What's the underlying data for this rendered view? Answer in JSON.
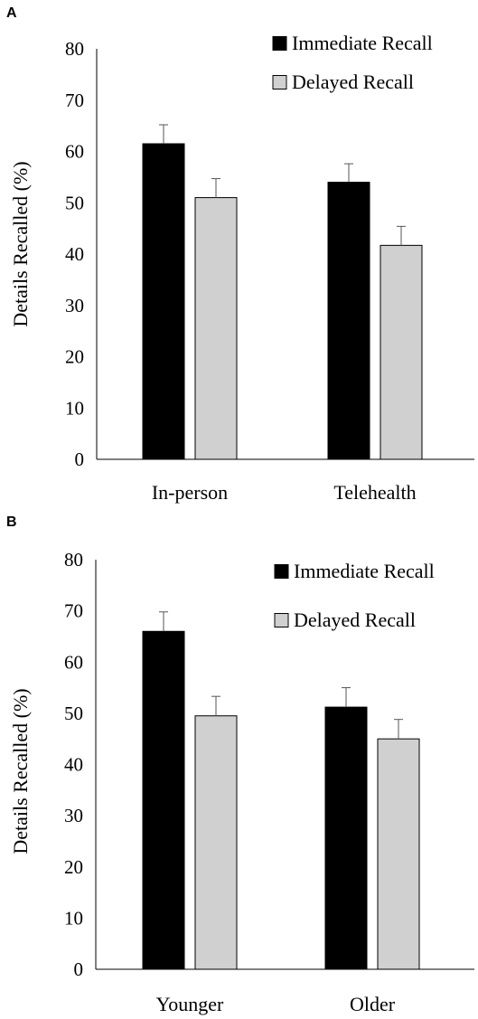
{
  "chart_data": [
    {
      "panel_label": "A",
      "type": "bar",
      "categories": [
        "In-person",
        "Telehealth"
      ],
      "ylabel": "Details Recalled (%)",
      "xlabel": "",
      "ylim": [
        0,
        80
      ],
      "yticks": [
        0,
        10,
        20,
        30,
        40,
        50,
        60,
        70,
        80
      ],
      "legend_position": "top-right",
      "series": [
        {
          "name": "Immediate Recall",
          "color": "#000000",
          "values": [
            61.5,
            54.0
          ],
          "errors": [
            3.7,
            3.6
          ]
        },
        {
          "name": "Delayed Recall",
          "color": "#d0d0d0",
          "values": [
            51.0,
            41.7
          ],
          "errors": [
            3.7,
            3.7
          ]
        }
      ]
    },
    {
      "panel_label": "B",
      "type": "bar",
      "categories": [
        "Younger",
        "Older"
      ],
      "ylabel": "Details Recalled (%)",
      "xlabel": "",
      "ylim": [
        0,
        80
      ],
      "yticks": [
        0,
        10,
        20,
        30,
        40,
        50,
        60,
        70,
        80
      ],
      "legend_position": "top-right",
      "series": [
        {
          "name": "Immediate Recall",
          "color": "#000000",
          "values": [
            66.0,
            51.2
          ],
          "errors": [
            3.8,
            3.8
          ]
        },
        {
          "name": "Delayed Recall",
          "color": "#d0d0d0",
          "values": [
            49.5,
            45.0
          ],
          "errors": [
            3.8,
            3.8
          ]
        }
      ]
    }
  ]
}
